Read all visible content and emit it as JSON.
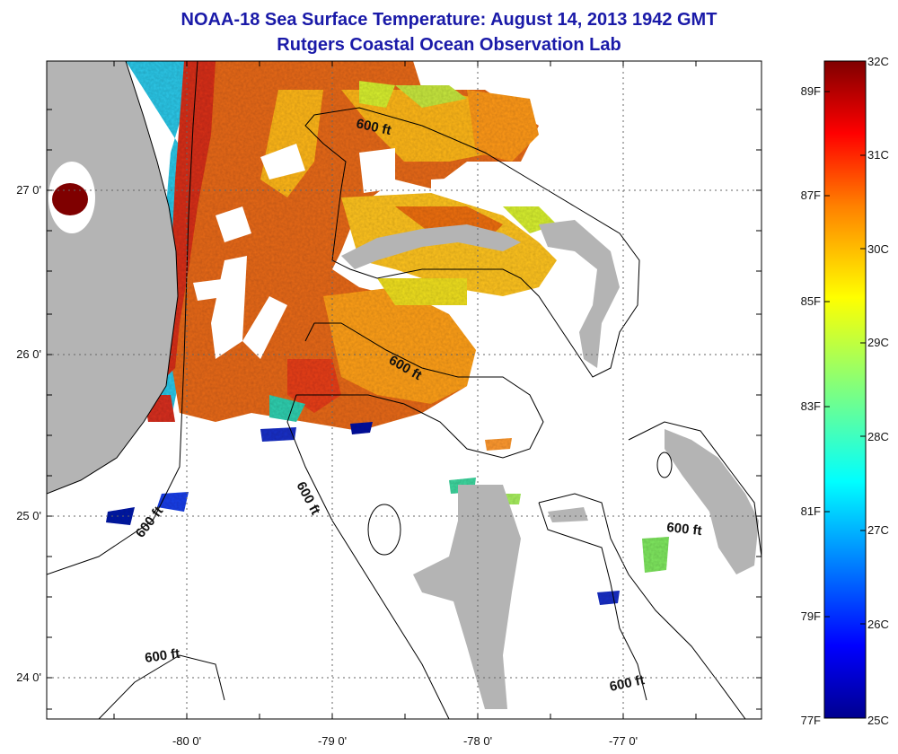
{
  "title": {
    "line1": "NOAA-18 Sea Surface Temperature:  August 14, 2013 1942 GMT",
    "line2": "Rutgers Coastal Ocean Observation Lab"
  },
  "latitude_labels": [
    "27 0'",
    "26 0'",
    "25 0'",
    "24 0'"
  ],
  "longitude_labels": [
    "-80 0'",
    "-79 0'",
    "-78 0'",
    "-77 0'"
  ],
  "isobath_labels": [
    "600 ft",
    "600 ft",
    "600 ft",
    "600 ft",
    "600 ft",
    "600 ft",
    "600 ft"
  ],
  "colorbar": {
    "fahrenheit_labels": [
      "89F",
      "87F",
      "85F",
      "83F",
      "81F",
      "79F",
      "77F"
    ],
    "celsius_labels": [
      "32C",
      "31C",
      "30C",
      "29C",
      "28C",
      "27C",
      "26C",
      "25C"
    ],
    "range_c": [
      25,
      32
    ],
    "colors": [
      "#00008f",
      "#0000ff",
      "#007fff",
      "#00ffff",
      "#7fff7f",
      "#ffff00",
      "#ff7f00",
      "#ff0000",
      "#7f0000"
    ]
  },
  "colors": {
    "land": "#b4b4b4",
    "title": "#1a1aa8",
    "hot": "#e8581a",
    "warm": "#ffbf1a"
  }
}
